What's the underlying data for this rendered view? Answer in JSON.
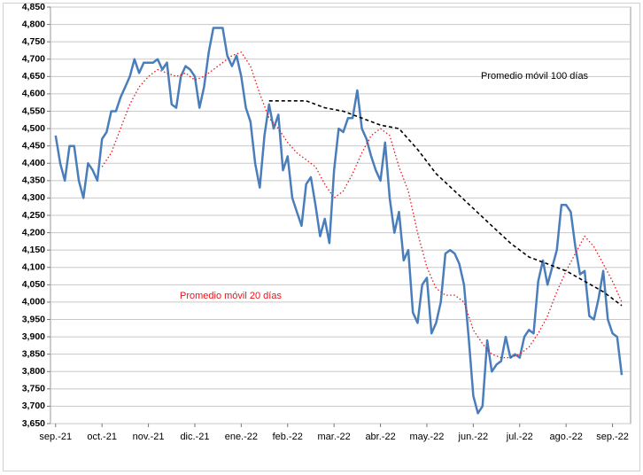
{
  "chart_data": {
    "type": "line",
    "xlim": [
      -0.11,
      12.39
    ],
    "xticks": [
      {
        "value": 0,
        "label": "sep.-21"
      },
      {
        "value": 1,
        "label": "oct.-21"
      },
      {
        "value": 2,
        "label": "nov.-21"
      },
      {
        "value": 3,
        "label": "dic.-21"
      },
      {
        "value": 4,
        "label": "ene.-22"
      },
      {
        "value": 5,
        "label": "feb.-22"
      },
      {
        "value": 6,
        "label": "mar.-22"
      },
      {
        "value": 7,
        "label": "abr.-22"
      },
      {
        "value": 8,
        "label": "may.-22"
      },
      {
        "value": 9,
        "label": "jun.-22"
      },
      {
        "value": 10,
        "label": "jul.-22"
      },
      {
        "value": 11,
        "label": "ago.-22"
      },
      {
        "value": 12,
        "label": "sep.-22"
      }
    ],
    "ylim": [
      3650,
      4850
    ],
    "yticks": [
      {
        "value": 3650,
        "label": "3,650"
      },
      {
        "value": 3700,
        "label": "3,700"
      },
      {
        "value": 3750,
        "label": "3,750"
      },
      {
        "value": 3800,
        "label": "3,800"
      },
      {
        "value": 3850,
        "label": "3,850"
      },
      {
        "value": 3900,
        "label": "3,900"
      },
      {
        "value": 3950,
        "label": "3,950"
      },
      {
        "value": 4000,
        "label": "4,000"
      },
      {
        "value": 4050,
        "label": "4,050"
      },
      {
        "value": 4100,
        "label": "4,100"
      },
      {
        "value": 4150,
        "label": "4,150"
      },
      {
        "value": 4200,
        "label": "4,200"
      },
      {
        "value": 4250,
        "label": "4,250"
      },
      {
        "value": 4300,
        "label": "4,300"
      },
      {
        "value": 4350,
        "label": "4,350"
      },
      {
        "value": 4400,
        "label": "4,400"
      },
      {
        "value": 4450,
        "label": "4,450"
      },
      {
        "value": 4500,
        "label": "4,500"
      },
      {
        "value": 4550,
        "label": "4,550"
      },
      {
        "value": 4600,
        "label": "4,600"
      },
      {
        "value": 4650,
        "label": "4,650"
      },
      {
        "value": 4700,
        "label": "4,700"
      },
      {
        "value": 4750,
        "label": "4,750"
      },
      {
        "value": 4800,
        "label": "4,800"
      },
      {
        "value": 4850,
        "label": "4,850"
      }
    ],
    "grid": true,
    "series": [
      {
        "color": "#4a7ebb",
        "style": "solid",
        "x": [
          0,
          0.1,
          0.2,
          0.3,
          0.4,
          0.5,
          0.6,
          0.7,
          0.8,
          0.9,
          1,
          1.1,
          1.2,
          1.3,
          1.4,
          1.5,
          1.6,
          1.7,
          1.8,
          1.9,
          2,
          2.1,
          2.2,
          2.3,
          2.4,
          2.5,
          2.6,
          2.7,
          2.8,
          2.9,
          3,
          3.1,
          3.2,
          3.3,
          3.4,
          3.5,
          3.6,
          3.7,
          3.8,
          3.9,
          4,
          4.1,
          4.2,
          4.3,
          4.4,
          4.5,
          4.6,
          4.7,
          4.8,
          4.9,
          5,
          5.1,
          5.2,
          5.3,
          5.4,
          5.5,
          5.6,
          5.7,
          5.8,
          5.9,
          6,
          6.1,
          6.2,
          6.3,
          6.4,
          6.5,
          6.6,
          6.7,
          6.8,
          6.9,
          7,
          7.1,
          7.2,
          7.3,
          7.4,
          7.5,
          7.6,
          7.7,
          7.8,
          7.9,
          8,
          8.1,
          8.2,
          8.3,
          8.4,
          8.5,
          8.6,
          8.7,
          8.8,
          8.9,
          9,
          9.1,
          9.2,
          9.3,
          9.4,
          9.5,
          9.6,
          9.7,
          9.8,
          9.9,
          10,
          10.1,
          10.2,
          10.3,
          10.4,
          10.5,
          10.6,
          10.7,
          10.8,
          10.9,
          11,
          11.1,
          11.2,
          11.3,
          11.4,
          11.5,
          11.6,
          11.7,
          11.8,
          11.9,
          12,
          12.1,
          12.2
        ],
        "values": [
          4480,
          4400,
          4350,
          4450,
          4450,
          4350,
          4300,
          4400,
          4380,
          4350,
          4470,
          4490,
          4550,
          4550,
          4590,
          4620,
          4650,
          4700,
          4660,
          4690,
          4690,
          4690,
          4700,
          4670,
          4690,
          4570,
          4560,
          4650,
          4680,
          4670,
          4650,
          4560,
          4620,
          4720,
          4790,
          4790,
          4790,
          4710,
          4680,
          4710,
          4650,
          4560,
          4520,
          4400,
          4330,
          4480,
          4570,
          4500,
          4540,
          4380,
          4420,
          4300,
          4260,
          4220,
          4340,
          4360,
          4280,
          4190,
          4240,
          4170,
          4380,
          4500,
          4490,
          4530,
          4530,
          4610,
          4500,
          4470,
          4420,
          4380,
          4350,
          4460,
          4300,
          4200,
          4260,
          4120,
          4150,
          3970,
          3940,
          4050,
          4070,
          3910,
          3940,
          4000,
          4140,
          4150,
          4140,
          4110,
          4050,
          3900,
          3730,
          3680,
          3700,
          3890,
          3800,
          3820,
          3830,
          3900,
          3840,
          3850,
          3840,
          3900,
          3920,
          3910,
          4060,
          4120,
          4050,
          4100,
          4150,
          4280,
          4280,
          4260,
          4160,
          4080,
          4090,
          3960,
          3950,
          4010,
          4090,
          3950,
          3910,
          3900,
          3790
        ]
      },
      {
        "name": "Promedio móvil 20 días",
        "color": "#e8141b",
        "style": "dotted",
        "x": [
          1,
          1.2,
          1.4,
          1.6,
          1.8,
          2,
          2.2,
          2.4,
          2.6,
          2.8,
          3,
          3.2,
          3.4,
          3.6,
          3.8,
          4,
          4.2,
          4.4,
          4.6,
          4.8,
          5,
          5.2,
          5.4,
          5.6,
          5.8,
          6,
          6.2,
          6.4,
          6.6,
          6.8,
          7,
          7.2,
          7.4,
          7.6,
          7.8,
          8,
          8.2,
          8.4,
          8.6,
          8.8,
          9,
          9.2,
          9.4,
          9.6,
          9.8,
          10,
          10.2,
          10.4,
          10.6,
          10.8,
          11,
          11.2,
          11.4,
          11.6,
          11.8,
          12,
          12.2
        ],
        "values": [
          4390,
          4430,
          4500,
          4570,
          4620,
          4650,
          4670,
          4660,
          4650,
          4660,
          4640,
          4650,
          4670,
          4690,
          4710,
          4720,
          4680,
          4600,
          4530,
          4500,
          4460,
          4430,
          4410,
          4390,
          4340,
          4300,
          4320,
          4370,
          4430,
          4480,
          4500,
          4480,
          4390,
          4320,
          4200,
          4100,
          4040,
          4020,
          4020,
          4000,
          3920,
          3880,
          3850,
          3840,
          3840,
          3850,
          3870,
          3910,
          3960,
          4030,
          4090,
          4140,
          4190,
          4160,
          4110,
          4060,
          4000
        ]
      },
      {
        "name": "Promedio móvil 100 días",
        "color": "#000000",
        "style": "dashed",
        "x": [
          4.6,
          5,
          5.4,
          5.8,
          6.2,
          6.6,
          7,
          7.4,
          7.8,
          8.2,
          8.6,
          9,
          9.4,
          9.8,
          10.2,
          10.6,
          11,
          11.4,
          11.8,
          12.2
        ],
        "values": [
          4580,
          4580,
          4580,
          4560,
          4550,
          4530,
          4510,
          4500,
          4440,
          4370,
          4320,
          4270,
          4220,
          4170,
          4130,
          4110,
          4090,
          4060,
          4030,
          3990
        ]
      }
    ]
  }
}
